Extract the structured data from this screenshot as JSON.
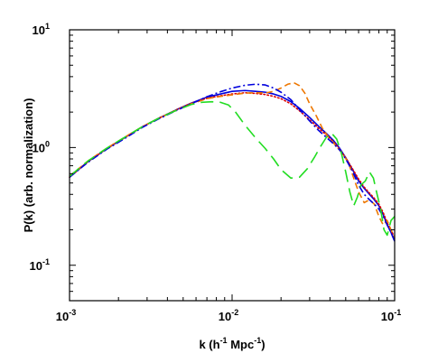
{
  "chart_data": {
    "type": "line",
    "xscale": "log",
    "yscale": "log",
    "xlim": [
      0.001,
      0.1
    ],
    "ylim": [
      0.05,
      10
    ],
    "grid": false,
    "legend": "none",
    "title": "",
    "xlabel": {
      "base": "k (h",
      "sup1": "-1",
      "mid": " Mpc",
      "sup2": "-1",
      "end": ")"
    },
    "ylabel": "P(k) (arb. normalization)",
    "x_ticks": [
      {
        "value": 0.001,
        "base": "10",
        "exp": "-3"
      },
      {
        "value": 0.01,
        "base": "10",
        "exp": "-2"
      },
      {
        "value": 0.1,
        "base": "10",
        "exp": "-1"
      }
    ],
    "y_ticks": [
      {
        "value": 0.1,
        "base": "10",
        "exp": "-1"
      },
      {
        "value": 1,
        "base": "10",
        "exp": "0"
      },
      {
        "value": 10,
        "base": "10",
        "exp": "1"
      }
    ],
    "series": [
      {
        "color": "#0000dd",
        "dash": "solid",
        "x": [
          0.001,
          0.0013,
          0.0017,
          0.0022,
          0.0028,
          0.0035,
          0.0045,
          0.0056,
          0.007,
          0.0085,
          0.01,
          0.012,
          0.014,
          0.016,
          0.018,
          0.02,
          0.023,
          0.026,
          0.03,
          0.034,
          0.038,
          0.042,
          0.046,
          0.05,
          0.055,
          0.06,
          0.065,
          0.07,
          0.075,
          0.08,
          0.085,
          0.09,
          0.095,
          0.1
        ],
        "y": [
          0.56,
          0.76,
          0.98,
          1.22,
          1.5,
          1.76,
          2.08,
          2.38,
          2.68,
          2.85,
          3.0,
          3.05,
          3.0,
          2.95,
          2.85,
          2.72,
          2.45,
          2.15,
          1.8,
          1.52,
          1.32,
          1.15,
          0.98,
          0.82,
          0.65,
          0.52,
          0.45,
          0.4,
          0.36,
          0.32,
          0.27,
          0.22,
          0.19,
          0.16
        ]
      },
      {
        "color": "#dd0000",
        "dash": "dotted",
        "x": [
          0.001,
          0.0013,
          0.0017,
          0.0022,
          0.0028,
          0.0035,
          0.0045,
          0.0056,
          0.007,
          0.0085,
          0.01,
          0.012,
          0.014,
          0.016,
          0.018,
          0.02,
          0.023,
          0.026,
          0.03,
          0.034,
          0.038,
          0.042,
          0.046,
          0.05,
          0.055,
          0.06,
          0.065,
          0.07,
          0.075,
          0.08,
          0.085,
          0.09,
          0.095,
          0.1
        ],
        "y": [
          0.56,
          0.76,
          0.98,
          1.22,
          1.5,
          1.76,
          2.08,
          2.38,
          2.62,
          2.75,
          2.85,
          2.92,
          2.88,
          2.82,
          2.72,
          2.6,
          2.35,
          2.05,
          1.72,
          1.46,
          1.28,
          1.12,
          0.96,
          0.82,
          0.66,
          0.54,
          0.46,
          0.41,
          0.37,
          0.33,
          0.28,
          0.23,
          0.2,
          0.17
        ]
      },
      {
        "color": "#ee7700",
        "dash": "dashed",
        "x": [
          0.001,
          0.0013,
          0.0017,
          0.0022,
          0.0028,
          0.0035,
          0.0045,
          0.0056,
          0.007,
          0.0085,
          0.01,
          0.012,
          0.014,
          0.016,
          0.018,
          0.02,
          0.022,
          0.024,
          0.026,
          0.028,
          0.03,
          0.033,
          0.036,
          0.04,
          0.044,
          0.048,
          0.052,
          0.056,
          0.06,
          0.065,
          0.07,
          0.075,
          0.08,
          0.085,
          0.09,
          0.095,
          0.1
        ],
        "y": [
          0.57,
          0.77,
          0.99,
          1.23,
          1.5,
          1.76,
          2.06,
          2.35,
          2.6,
          2.72,
          2.8,
          2.9,
          2.92,
          2.9,
          3.0,
          3.2,
          3.45,
          3.55,
          3.35,
          2.9,
          2.35,
          1.85,
          1.45,
          1.18,
          1.02,
          0.88,
          0.74,
          0.55,
          0.42,
          0.34,
          0.36,
          0.33,
          0.26,
          0.22,
          0.24,
          0.2,
          0.17
        ]
      },
      {
        "color": "#0000dd",
        "dash": "dashdot",
        "x": [
          0.001,
          0.0013,
          0.0017,
          0.0022,
          0.0028,
          0.0035,
          0.0045,
          0.0056,
          0.007,
          0.0085,
          0.01,
          0.012,
          0.014,
          0.016,
          0.018,
          0.02,
          0.023,
          0.026,
          0.03,
          0.034,
          0.038,
          0.042,
          0.046,
          0.05,
          0.055,
          0.06,
          0.065,
          0.07,
          0.075,
          0.08,
          0.085,
          0.09,
          0.095,
          0.1
        ],
        "y": [
          0.56,
          0.75,
          0.97,
          1.2,
          1.48,
          1.74,
          2.05,
          2.35,
          2.7,
          2.98,
          3.2,
          3.38,
          3.45,
          3.4,
          3.2,
          2.95,
          2.55,
          2.1,
          1.68,
          1.4,
          1.22,
          1.08,
          0.95,
          0.8,
          0.63,
          0.48,
          0.4,
          0.36,
          0.33,
          0.3,
          0.26,
          0.22,
          0.19,
          0.16
        ]
      },
      {
        "color": "#22dd22",
        "dash": "longdash",
        "x": [
          0.001,
          0.0013,
          0.0017,
          0.0022,
          0.0028,
          0.0035,
          0.0045,
          0.0056,
          0.0065,
          0.0075,
          0.0085,
          0.0095,
          0.0105,
          0.012,
          0.014,
          0.016,
          0.018,
          0.02,
          0.023,
          0.026,
          0.029,
          0.032,
          0.035,
          0.038,
          0.041,
          0.044,
          0.047,
          0.05,
          0.053,
          0.056,
          0.059,
          0.062,
          0.066,
          0.07,
          0.074,
          0.078,
          0.082,
          0.086,
          0.09,
          0.095,
          0.1
        ],
        "y": [
          0.57,
          0.77,
          0.99,
          1.23,
          1.5,
          1.76,
          2.06,
          2.32,
          2.42,
          2.45,
          2.42,
          2.3,
          2.0,
          1.55,
          1.2,
          0.98,
          0.8,
          0.65,
          0.55,
          0.56,
          0.66,
          0.82,
          1.02,
          1.22,
          1.32,
          1.18,
          0.9,
          0.62,
          0.42,
          0.32,
          0.38,
          0.48,
          0.52,
          0.62,
          0.55,
          0.4,
          0.3,
          0.2,
          0.18,
          0.24,
          0.26
        ]
      }
    ]
  }
}
